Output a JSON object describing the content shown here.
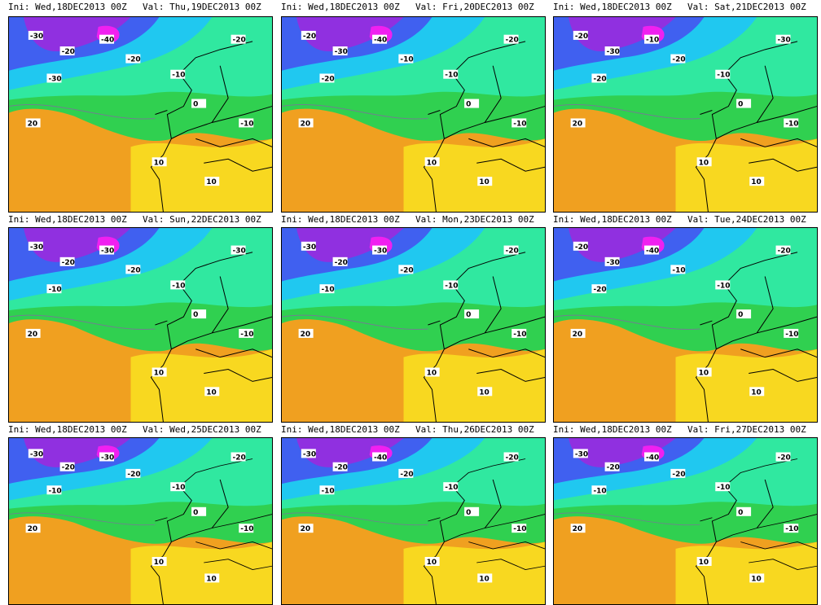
{
  "panels": [
    {
      "init": "Ini: Wed,18DEC2013 00Z",
      "valid": "Val: Thu,19DEC2013 00Z",
      "labels": [
        "-30",
        "-20",
        "-40",
        "-30",
        "-20",
        "-10",
        "0",
        "-10",
        "20",
        "10",
        "-20",
        "10"
      ]
    },
    {
      "init": "Ini: Wed,18DEC2013 00Z",
      "valid": "Val: Fri,20DEC2013 00Z",
      "labels": [
        "-20",
        "-30",
        "-40",
        "-20",
        "-10",
        "-10",
        "0",
        "-10",
        "20",
        "10",
        "-20",
        "10"
      ]
    },
    {
      "init": "Ini: Wed,18DEC2013 00Z",
      "valid": "Val: Sat,21DEC2013 00Z",
      "labels": [
        "-20",
        "-30",
        "-10",
        "-20",
        "-20",
        "-10",
        "0",
        "-10",
        "20",
        "10",
        "-30",
        "10"
      ]
    },
    {
      "init": "Ini: Wed,18DEC2013 00Z",
      "valid": "Val: Sun,22DEC2013 00Z",
      "labels": [
        "-30",
        "-20",
        "-30",
        "-10",
        "-20",
        "-10",
        "0",
        "-10",
        "20",
        "10",
        "-30",
        "10"
      ]
    },
    {
      "init": "Ini: Wed,18DEC2013 00Z",
      "valid": "Val: Mon,23DEC2013 00Z",
      "labels": [
        "-30",
        "-20",
        "-30",
        "-10",
        "-20",
        "-10",
        "0",
        "-10",
        "20",
        "10",
        "-20",
        "10"
      ]
    },
    {
      "init": "Ini: Wed,18DEC2013 00Z",
      "valid": "Val: Tue,24DEC2013 00Z",
      "labels": [
        "-20",
        "-30",
        "-40",
        "-20",
        "-10",
        "-10",
        "0",
        "-10",
        "20",
        "10",
        "-20",
        "10"
      ]
    },
    {
      "init": "Ini: Wed,18DEC2013 00Z",
      "valid": "Val: Wed,25DEC2013 00Z",
      "labels": [
        "-30",
        "-20",
        "-30",
        "-10",
        "-20",
        "-10",
        "0",
        "-10",
        "20",
        "10",
        "-20",
        "10"
      ]
    },
    {
      "init": "Ini: Wed,18DEC2013 00Z",
      "valid": "Val: Thu,26DEC2013 00Z",
      "labels": [
        "-30",
        "-20",
        "-40",
        "-10",
        "-20",
        "-10",
        "0",
        "-10",
        "20",
        "10",
        "-20",
        "10"
      ]
    },
    {
      "init": "Ini: Wed,18DEC2013 00Z",
      "valid": "Val: Fri,27DEC2013 00Z",
      "labels": [
        "-30",
        "-20",
        "-40",
        "-10",
        "-20",
        "-10",
        "0",
        "-10",
        "20",
        "10",
        "-20",
        "10"
      ]
    }
  ]
}
